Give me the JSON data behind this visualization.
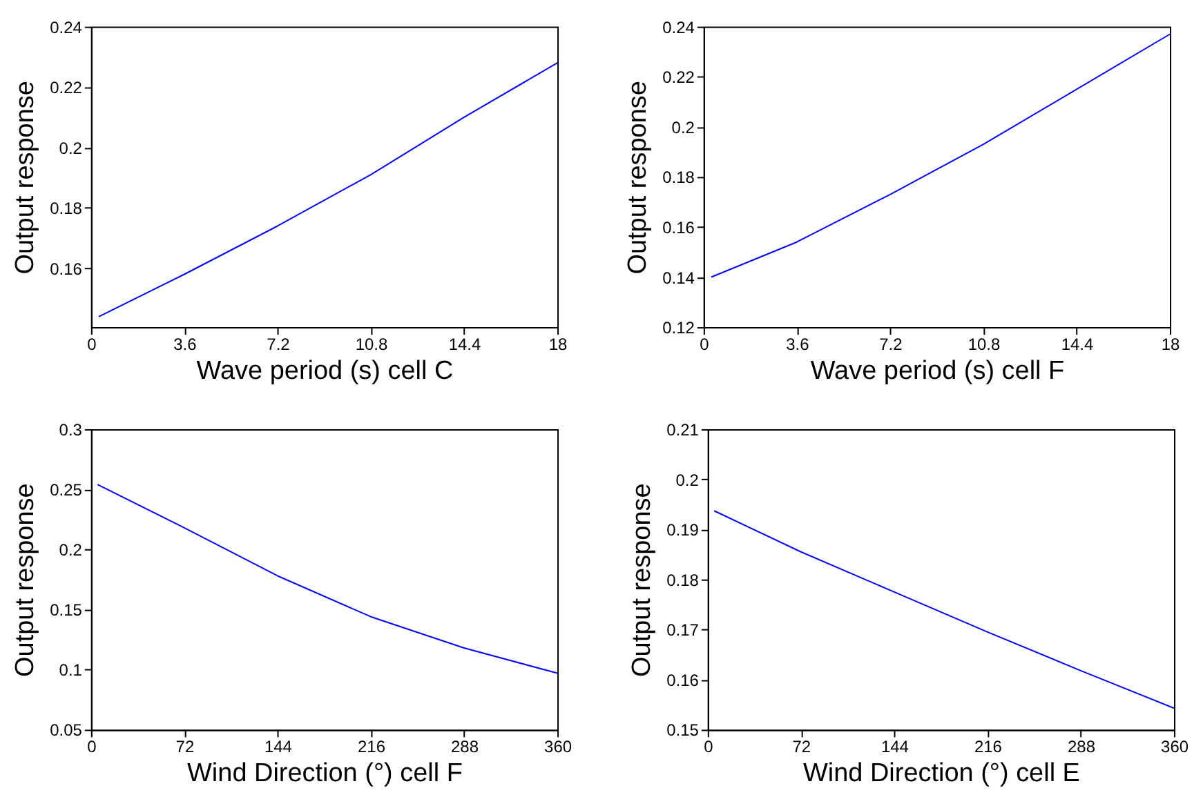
{
  "chart_data": [
    {
      "type": "line",
      "xlabel": "Wave period (s) cell C",
      "ylabel": "Output response",
      "x": [
        0.3,
        3.6,
        7.2,
        10.8,
        14.4,
        18
      ],
      "series": [
        {
          "color": "#0000ff",
          "values": [
            0.144,
            0.158,
            0.174,
            0.191,
            0.21,
            0.228
          ]
        }
      ],
      "xlim": [
        0,
        18
      ],
      "xticks": [
        0,
        3.6,
        7.2,
        10.8,
        14.4,
        18
      ],
      "ylim": [
        0.1405,
        0.24
      ],
      "yticks": [
        0.16,
        0.18,
        0.2,
        0.22,
        0.24
      ],
      "grid": false
    },
    {
      "type": "line",
      "xlabel": "Wave period (s) cell F",
      "ylabel": "Output response",
      "x": [
        0.3,
        3.6,
        7.2,
        10.8,
        14.4,
        18
      ],
      "series": [
        {
          "color": "#0000ff",
          "values": [
            0.14,
            0.154,
            0.173,
            0.193,
            0.215,
            0.237
          ]
        }
      ],
      "xlim": [
        0,
        18
      ],
      "xticks": [
        0,
        3.6,
        7.2,
        10.8,
        14.4,
        18
      ],
      "ylim": [
        0.12,
        0.24
      ],
      "yticks": [
        0.12,
        0.14,
        0.16,
        0.18,
        0.2,
        0.22,
        0.24
      ],
      "grid": false
    },
    {
      "type": "line",
      "xlabel": "Wind Direction (°) cell F",
      "ylabel": "Output response",
      "x": [
        5,
        72,
        144,
        216,
        288,
        360
      ],
      "series": [
        {
          "color": "#0000ff",
          "values": [
            0.254,
            0.218,
            0.178,
            0.144,
            0.118,
            0.097
          ]
        }
      ],
      "xlim": [
        0,
        360
      ],
      "xticks": [
        0,
        72,
        144,
        216,
        288,
        360
      ],
      "ylim": [
        0.05,
        0.3
      ],
      "yticks": [
        0.05,
        0.1,
        0.15,
        0.2,
        0.25,
        0.3
      ],
      "grid": false
    },
    {
      "type": "line",
      "xlabel": "Wind Direction (°) cell E",
      "ylabel": "Output response",
      "x": [
        5,
        72,
        144,
        216,
        288,
        360
      ],
      "series": [
        {
          "color": "#0000ff",
          "values": [
            0.1937,
            0.1855,
            0.1775,
            0.1695,
            0.1618,
            0.1543
          ]
        }
      ],
      "xlim": [
        0,
        360
      ],
      "xticks": [
        0,
        72,
        144,
        216,
        288,
        360
      ],
      "ylim": [
        0.15,
        0.21
      ],
      "yticks": [
        0.15,
        0.16,
        0.17,
        0.18,
        0.19,
        0.2,
        0.21
      ],
      "grid": false
    }
  ]
}
